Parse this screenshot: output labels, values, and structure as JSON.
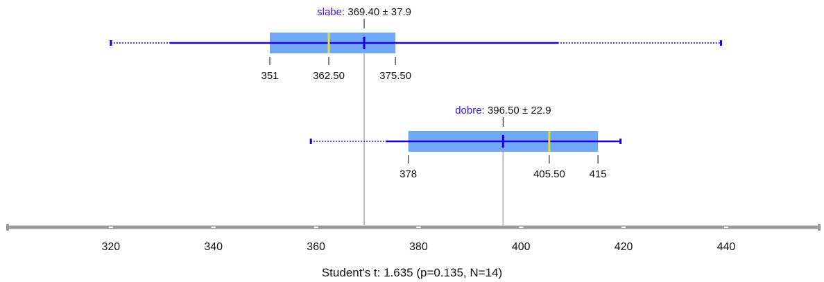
{
  "colors": {
    "box": "#70a8f5",
    "median": "#dede33",
    "mean_line": "#1c00e0",
    "group_label": "#3c14e6",
    "guide": "#c0c0c0",
    "axis": "#9a9a9a",
    "text": "#111111"
  },
  "chart_data": {
    "type": "boxplot",
    "title": "",
    "xlabel": "",
    "xlim": [
      300,
      458
    ],
    "x_ticks": [
      320,
      340,
      360,
      380,
      400,
      420,
      440
    ],
    "footer": "Student's t: 1.635 (p=0.135, N=14)",
    "groups": [
      {
        "name": "slabe",
        "mean_label": "369.40 ± 37.9",
        "mean": 369.4,
        "sd": 37.9,
        "min": 320,
        "whisker_low": 331.5,
        "q1": 351,
        "median": 362.5,
        "q3": 375.5,
        "whisker_high": 407.3,
        "max": 439,
        "q_labels": [
          "351",
          "362.50",
          "375.50"
        ]
      },
      {
        "name": "dobre",
        "mean_label": "396.50 ± 22.9",
        "mean": 396.5,
        "sd": 22.9,
        "min": 359,
        "whisker_low": 373.6,
        "q1": 378,
        "median": 405.5,
        "q3": 415,
        "whisker_high": 419.4,
        "max": 419.4,
        "q_labels": [
          "378",
          "405.50",
          "415"
        ]
      }
    ]
  }
}
